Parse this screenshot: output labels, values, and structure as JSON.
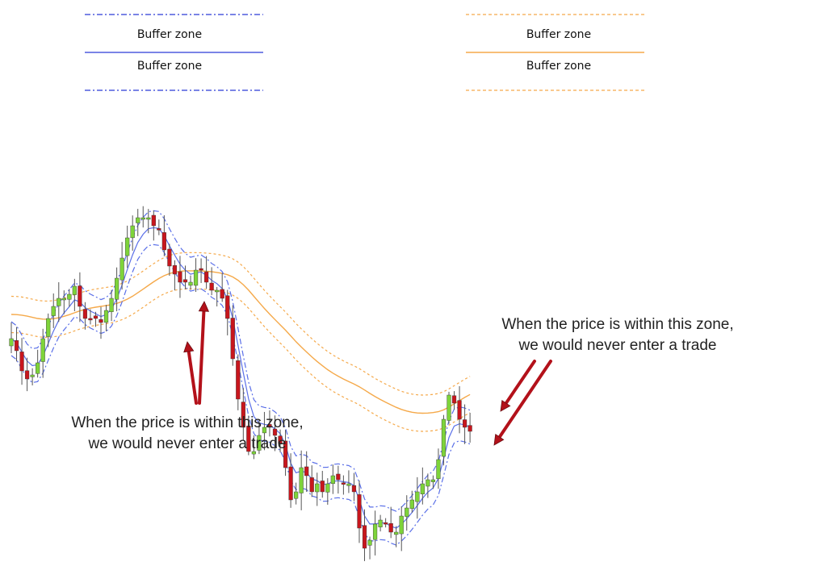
{
  "colors": {
    "fast_band": "#5a6fe8",
    "fast_band_legend": "#2a3ad6",
    "slow_band": "#f5a94a",
    "bull": "#7ed43a",
    "bear": "#c8161d",
    "wick": "#555555",
    "arrow": "#b3111a"
  },
  "legend": {
    "fast": {
      "upper_label": "Buffer zone",
      "lower_label": "Buffer zone"
    },
    "slow": {
      "upper_label": "Buffer zone",
      "lower_label": "Buffer zone"
    }
  },
  "annotations": {
    "left": {
      "line1": "When the price is within this zone,",
      "line2": "we would never enter a trade"
    },
    "right": {
      "line1": "When the price is within this zone,",
      "line2": "we would never enter a trade"
    }
  },
  "chart_data": {
    "type": "candlestick",
    "grid": false,
    "close": [
      50,
      47,
      42,
      40,
      41,
      44,
      50,
      55,
      58,
      60,
      60,
      61,
      63,
      58,
      55,
      55,
      55,
      54,
      57,
      60,
      65,
      70,
      75,
      78,
      80,
      80,
      80,
      78,
      77,
      72,
      68,
      66,
      64,
      64,
      64,
      67,
      67,
      64,
      62,
      62,
      60,
      55,
      45,
      35,
      28,
      22,
      22,
      26,
      28,
      28,
      26,
      24,
      18,
      10,
      12,
      18,
      16,
      12,
      14,
      12,
      14,
      16,
      15,
      14,
      14,
      12,
      3,
      -2,
      0,
      4,
      5,
      4,
      2,
      2,
      6,
      8,
      10,
      12,
      14,
      15,
      15,
      20,
      30,
      36,
      34,
      30,
      28,
      27
    ]
  }
}
